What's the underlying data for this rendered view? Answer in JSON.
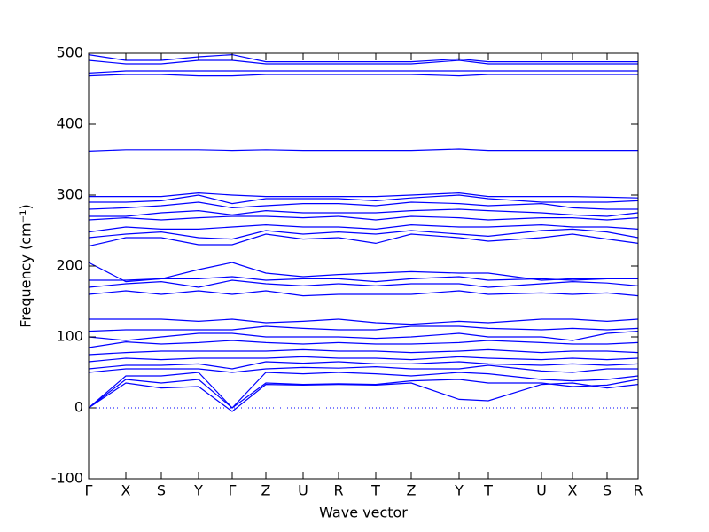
{
  "chart_data": {
    "type": "line",
    "x_label": "Wave vector",
    "y_label": "Frequency (cm⁻¹)",
    "color": "#0000ff",
    "hline": 0,
    "xlim": [
      0,
      620
    ],
    "ylim": [
      -100,
      500
    ],
    "yticks": [
      -100,
      0,
      100,
      200,
      300,
      400,
      500
    ],
    "xticks": [
      {
        "value": 0,
        "label": "Γ"
      },
      {
        "value": 42,
        "label": "X"
      },
      {
        "value": 82,
        "label": "S"
      },
      {
        "value": 124,
        "label": "Y"
      },
      {
        "value": 162,
        "label": "Γ"
      },
      {
        "value": 200,
        "label": "Z"
      },
      {
        "value": 242,
        "label": "U"
      },
      {
        "value": 282,
        "label": "R"
      },
      {
        "value": 324,
        "label": "T"
      },
      {
        "value": 364,
        "label": "Z"
      },
      {
        "value": 418,
        "label": "Y"
      },
      {
        "value": 451,
        "label": "T"
      },
      {
        "value": 511,
        "label": "U"
      },
      {
        "value": 546,
        "label": "X"
      },
      {
        "value": 585,
        "label": "S"
      },
      {
        "value": 620,
        "label": "R"
      }
    ],
    "x": [
      0,
      42,
      82,
      124,
      162,
      200,
      242,
      282,
      324,
      364,
      418,
      451,
      511,
      546,
      585,
      620
    ],
    "series": [
      {
        "values": [
          0,
          35,
          28,
          30,
          -5,
          33,
          32,
          33,
          32,
          35,
          12,
          10,
          33,
          35,
          28,
          33
        ]
      },
      {
        "values": [
          0,
          40,
          35,
          40,
          0,
          35,
          33,
          34,
          33,
          38,
          40,
          35,
          35,
          30,
          32,
          40
        ]
      },
      {
        "values": [
          0,
          45,
          45,
          50,
          0,
          50,
          48,
          50,
          48,
          45,
          50,
          48,
          40,
          38,
          40,
          45
        ]
      },
      {
        "values": [
          50,
          55,
          55,
          55,
          50,
          55,
          57,
          56,
          58,
          55,
          55,
          60,
          52,
          50,
          55,
          55
        ]
      },
      {
        "values": [
          55,
          60,
          60,
          62,
          55,
          65,
          63,
          65,
          62,
          62,
          65,
          62,
          60,
          62,
          60,
          62
        ]
      },
      {
        "values": [
          65,
          70,
          68,
          70,
          70,
          70,
          72,
          70,
          70,
          68,
          72,
          70,
          68,
          70,
          68,
          70
        ]
      },
      {
        "values": [
          75,
          78,
          80,
          80,
          80,
          80,
          82,
          80,
          80,
          78,
          80,
          82,
          78,
          80,
          80,
          78
        ]
      },
      {
        "values": [
          85,
          93,
          90,
          92,
          95,
          92,
          90,
          92,
          90,
          90,
          92,
          95,
          92,
          90,
          90,
          92
        ]
      },
      {
        "values": [
          100,
          95,
          100,
          105,
          105,
          100,
          100,
          100,
          98,
          100,
          105,
          100,
          100,
          95,
          105,
          108
        ]
      },
      {
        "values": [
          108,
          110,
          110,
          110,
          110,
          115,
          112,
          110,
          110,
          115,
          115,
          112,
          110,
          112,
          110,
          112
        ]
      },
      {
        "values": [
          125,
          125,
          125,
          122,
          125,
          120,
          122,
          125,
          120,
          118,
          122,
          120,
          125,
          125,
          122,
          125
        ]
      },
      {
        "values": [
          160,
          165,
          160,
          165,
          160,
          165,
          158,
          160,
          160,
          160,
          165,
          160,
          162,
          160,
          162,
          158
        ]
      },
      {
        "values": [
          170,
          175,
          178,
          170,
          180,
          175,
          172,
          175,
          172,
          175,
          175,
          170,
          175,
          178,
          176,
          172
        ]
      },
      {
        "values": [
          180,
          180,
          182,
          182,
          185,
          180,
          182,
          182,
          178,
          182,
          185,
          180,
          182,
          180,
          182,
          182
        ]
      },
      {
        "values": [
          205,
          178,
          182,
          195,
          205,
          190,
          185,
          188,
          190,
          192,
          190,
          190,
          180,
          182,
          182,
          182
        ]
      },
      {
        "values": [
          228,
          240,
          240,
          230,
          230,
          245,
          238,
          240,
          232,
          245,
          240,
          235,
          240,
          245,
          238,
          232
        ]
      },
      {
        "values": [
          240,
          245,
          248,
          240,
          238,
          250,
          245,
          248,
          245,
          250,
          245,
          242,
          250,
          252,
          248,
          240
        ]
      },
      {
        "values": [
          248,
          255,
          252,
          252,
          255,
          258,
          255,
          255,
          252,
          258,
          255,
          255,
          258,
          255,
          255,
          252
        ]
      },
      {
        "values": [
          265,
          268,
          265,
          268,
          270,
          270,
          268,
          270,
          265,
          270,
          268,
          265,
          268,
          268,
          265,
          268
        ]
      },
      {
        "values": [
          270,
          270,
          275,
          278,
          272,
          278,
          275,
          275,
          275,
          278,
          280,
          278,
          275,
          272,
          270,
          275
        ]
      },
      {
        "values": [
          280,
          282,
          285,
          290,
          282,
          285,
          288,
          288,
          285,
          290,
          288,
          285,
          288,
          282,
          280,
          280
        ]
      },
      {
        "values": [
          290,
          290,
          292,
          300,
          288,
          295,
          295,
          295,
          292,
          296,
          300,
          295,
          290,
          290,
          290,
          292
        ]
      },
      {
        "values": [
          298,
          298,
          298,
          303,
          300,
          298,
          298,
          298,
          298,
          300,
          303,
          298,
          298,
          298,
          297,
          296
        ]
      },
      {
        "values": [
          362,
          364,
          364,
          364,
          363,
          364,
          363,
          363,
          363,
          363,
          365,
          363,
          363,
          363,
          363,
          363
        ]
      },
      {
        "values": [
          468,
          470,
          470,
          468,
          468,
          470,
          470,
          470,
          470,
          470,
          468,
          470,
          470,
          470,
          470,
          470
        ]
      },
      {
        "values": [
          472,
          475,
          475,
          475,
          475,
          475,
          475,
          475,
          475,
          475,
          475,
          475,
          475,
          475,
          475,
          475
        ]
      },
      {
        "values": [
          490,
          485,
          485,
          490,
          490,
          485,
          485,
          485,
          485,
          485,
          490,
          485,
          485,
          485,
          485,
          485
        ]
      },
      {
        "values": [
          498,
          490,
          490,
          495,
          498,
          488,
          488,
          488,
          488,
          488,
          492,
          488,
          488,
          488,
          488,
          488
        ]
      }
    ]
  }
}
